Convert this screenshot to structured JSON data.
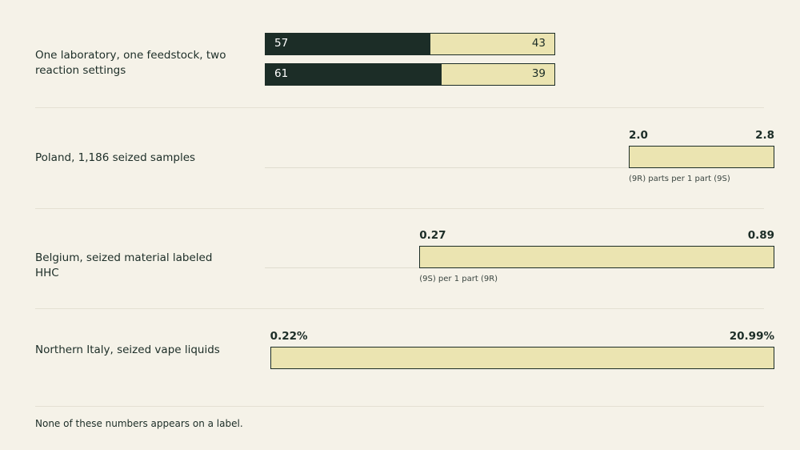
{
  "chart_data": [
    {
      "type": "stacked_bar",
      "title": "One laboratory, one feedstock, two reaction settings",
      "xlim": [
        0,
        100
      ],
      "series": [
        {
          "color": "#1c2d27",
          "values": [
            57,
            61
          ]
        },
        {
          "color": "#ebe4b1",
          "values": [
            43,
            39
          ]
        }
      ]
    },
    {
      "type": "range",
      "title": "Poland, 1,186 seized samples",
      "xlim": [
        0,
        2.8
      ],
      "values": [
        2.0,
        2.8
      ],
      "value_labels": [
        "2.0",
        "2.8"
      ],
      "note": "(9R) parts per 1 part (9S)",
      "color": "#ebe4b1",
      "baseline": true
    },
    {
      "type": "range",
      "title": "Belgium, seized material labeled HHC",
      "xlim": [
        0,
        0.89
      ],
      "values": [
        0.27,
        0.89
      ],
      "value_labels": [
        "0.27",
        "0.89"
      ],
      "note": "(9S) per 1 part (9R)",
      "color": "#ebe4b1",
      "baseline": true
    },
    {
      "type": "range",
      "title": "Northern Italy, seized vape liquids",
      "xlim": [
        0,
        20.99
      ],
      "values": [
        0.22,
        20.99
      ],
      "value_labels": [
        "0.22%",
        "20.99%"
      ],
      "color": "#ebe4b1",
      "baseline": false
    }
  ],
  "footnote": "None of these numbers appears on a label."
}
